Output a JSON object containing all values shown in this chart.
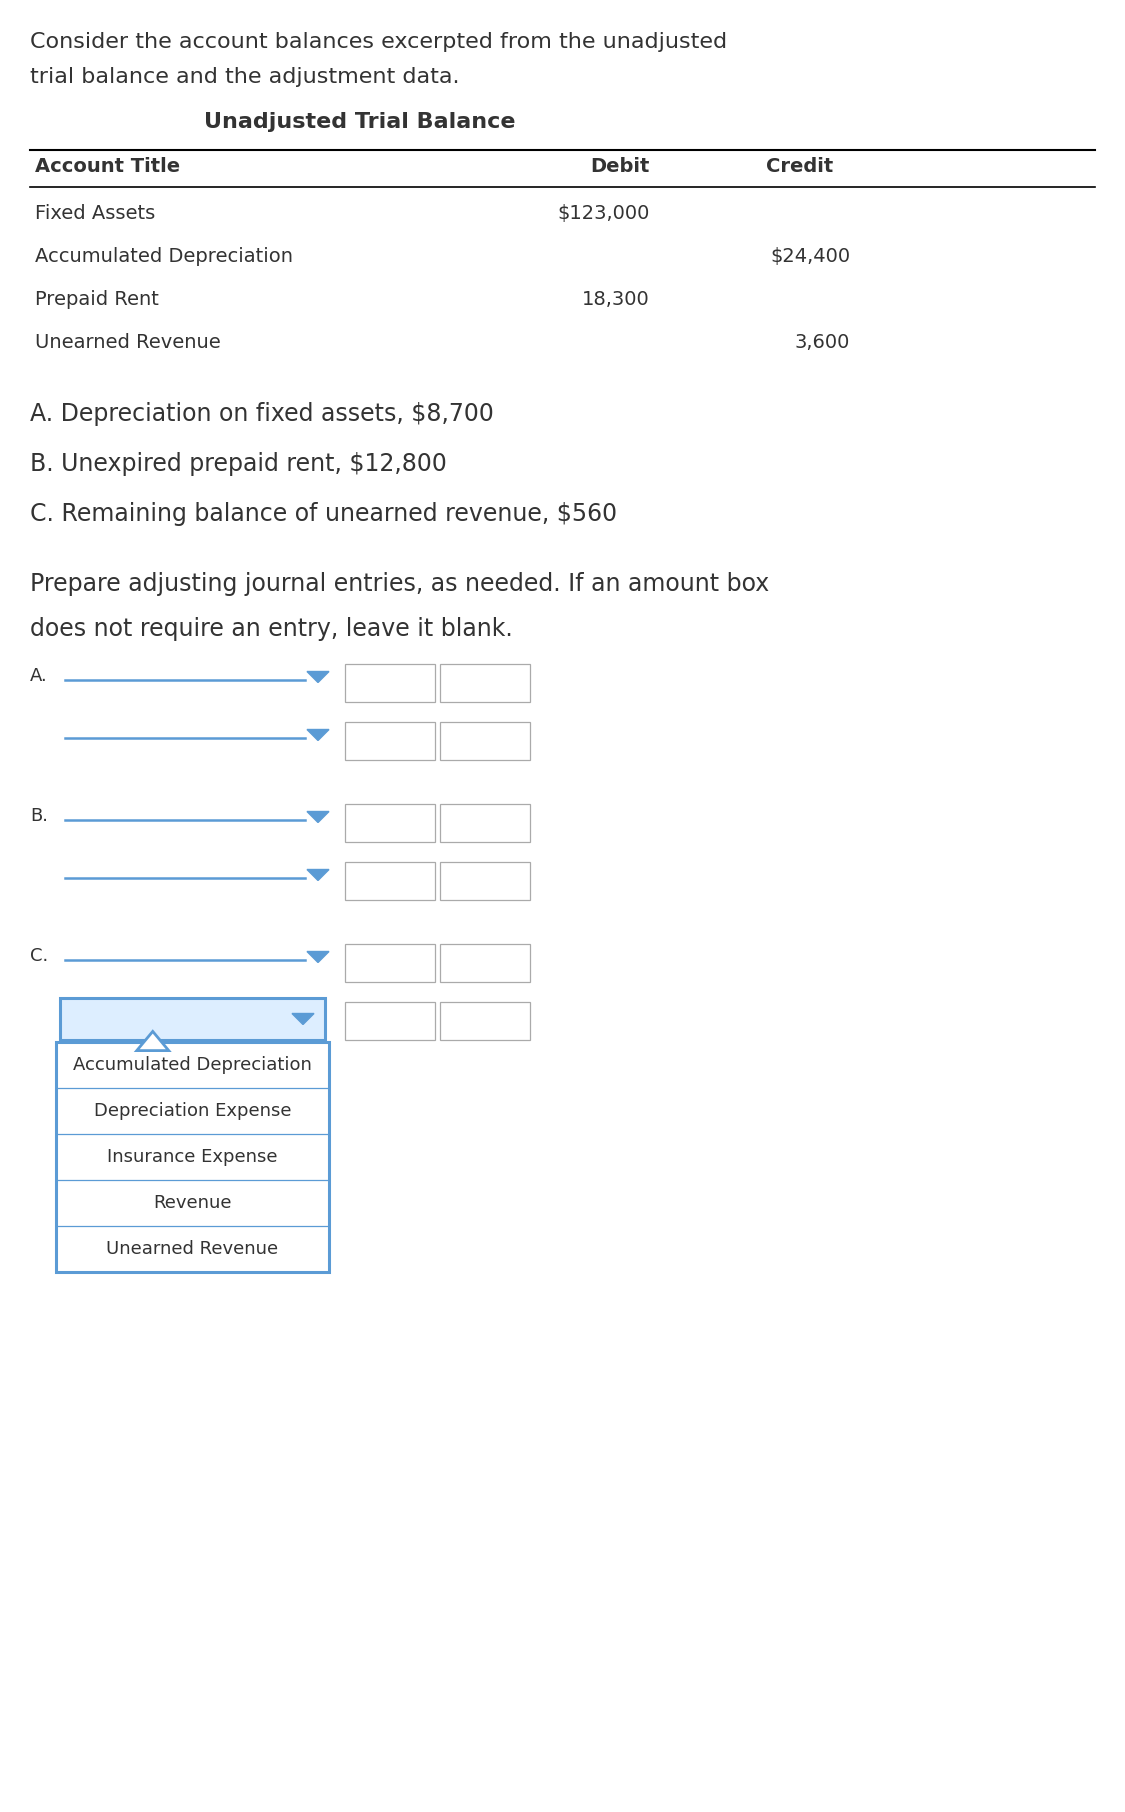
{
  "bg_color": "#ffffff",
  "intro_text_line1": "Consider the account balances excerpted from the unadjusted",
  "intro_text_line2": "trial balance and the adjustment data.",
  "table_title": "Unadjusted Trial Balance",
  "col_headers": [
    "Account Title",
    "Debit",
    "Credit"
  ],
  "table_rows": [
    [
      "Fixed Assets",
      "$123,000",
      ""
    ],
    [
      "Accumulated Depreciation",
      "",
      "$24,400"
    ],
    [
      "Prepaid Rent",
      "18,300",
      ""
    ],
    [
      "Unearned Revenue",
      "",
      "3,600"
    ]
  ],
  "adjustment_lines": [
    "A. Depreciation on fixed assets, $8,700",
    "B. Unexpired prepaid rent, $12,800",
    "C. Remaining balance of unearned revenue, $560"
  ],
  "prepare_text_line1": "Prepare adjusting journal entries, as needed. If an amount box",
  "prepare_text_line2": "does not require an entry, leave it blank.",
  "section_labels": [
    "A.",
    "B.",
    "C."
  ],
  "dropdown_items": [
    "Accumulated Depreciation",
    "Depreciation Expense",
    "Insurance Expense",
    "Revenue",
    "Unearned Revenue"
  ],
  "dropdown_border_color": "#5b9bd5",
  "dropdown_fill_color": "#ddeeff",
  "input_box_color": "#ffffff",
  "input_box_border": "#aaaaaa",
  "line_color": "#5b9bd5",
  "arrow_color": "#5b9bd5",
  "table_line_color": "#000000",
  "font_color": "#333333",
  "font_family": "DejaVu Sans",
  "intro_fontsize": 16,
  "table_title_fontsize": 16,
  "header_fontsize": 14,
  "row_fontsize": 14,
  "adj_fontsize": 17,
  "prepare_fontsize": 17,
  "section_label_fontsize": 13,
  "dropdown_item_fontsize": 13
}
